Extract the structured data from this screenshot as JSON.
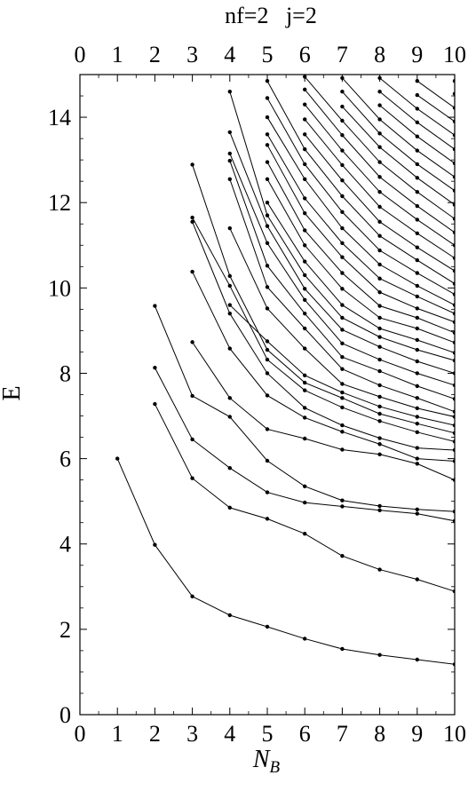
{
  "chart_data": {
    "type": "line",
    "title": "nf=2   j=2",
    "xlabel": "N",
    "xlabel_sub": "B",
    "ylabel": "E",
    "xlim": [
      0,
      10
    ],
    "ylim": [
      0,
      15
    ],
    "x_ticks": [
      0,
      1,
      2,
      3,
      4,
      5,
      6,
      7,
      8,
      9,
      10
    ],
    "y_ticks": [
      0,
      2,
      4,
      6,
      8,
      10,
      12,
      14
    ],
    "grid": false,
    "legend": "none",
    "line_color": "#000000",
    "series": [
      {
        "x": [
          1,
          2,
          3,
          4,
          5,
          6,
          7,
          8,
          9,
          10
        ],
        "y": [
          6.0,
          3.98,
          2.77,
          2.33,
          2.06,
          1.78,
          1.54,
          1.4,
          1.29,
          1.18
        ]
      },
      {
        "x": [
          2,
          3,
          4,
          5,
          6,
          7,
          8,
          9,
          10
        ],
        "y": [
          7.28,
          5.54,
          4.85,
          4.59,
          4.24,
          3.72,
          3.4,
          3.17,
          2.89
        ]
      },
      {
        "x": [
          2,
          3,
          4,
          5,
          6,
          7,
          8,
          9,
          10
        ],
        "y": [
          8.13,
          6.45,
          5.78,
          5.21,
          4.97,
          4.88,
          4.79,
          4.71,
          4.54
        ]
      },
      {
        "x": [
          2,
          3,
          4,
          5,
          6,
          7,
          8,
          9,
          10
        ],
        "y": [
          9.58,
          7.47,
          6.98,
          5.95,
          5.35,
          5.02,
          4.89,
          4.81,
          4.76
        ]
      },
      {
        "x": [
          3,
          4,
          5,
          6,
          7,
          8,
          9,
          10
        ],
        "y": [
          8.73,
          7.42,
          6.69,
          6.47,
          6.21,
          6.1,
          5.88,
          5.5
        ]
      },
      {
        "x": [
          3,
          4,
          5,
          6,
          7,
          8,
          9,
          10
        ],
        "y": [
          10.38,
          8.58,
          7.48,
          6.96,
          6.63,
          6.34,
          6.0,
          5.94
        ]
      },
      {
        "x": [
          3,
          4,
          5,
          6,
          7,
          8,
          9,
          10
        ],
        "y": [
          11.55,
          9.4,
          8.0,
          7.19,
          6.78,
          6.48,
          6.25,
          6.2
        ]
      },
      {
        "x": [
          3,
          4,
          5,
          6,
          7,
          8,
          9,
          10
        ],
        "y": [
          11.65,
          10.05,
          8.32,
          7.6,
          7.2,
          6.88,
          6.62,
          6.4
        ]
      },
      {
        "x": [
          3,
          4,
          5,
          6,
          7,
          8,
          9,
          10
        ],
        "y": [
          12.89,
          10.28,
          8.55,
          7.78,
          7.42,
          7.05,
          6.82,
          6.6
        ]
      },
      {
        "x": [
          4,
          5,
          6,
          7,
          8,
          9,
          10
        ],
        "y": [
          9.6,
          8.75,
          7.95,
          7.55,
          7.22,
          6.98,
          6.78
        ]
      },
      {
        "x": [
          4,
          5,
          6,
          7,
          8,
          9,
          10
        ],
        "y": [
          11.4,
          9.52,
          8.58,
          7.75,
          7.45,
          7.18,
          6.98
        ]
      },
      {
        "x": [
          4,
          5,
          6,
          7,
          8,
          9,
          10
        ],
        "y": [
          12.55,
          10.02,
          9.05,
          8.1,
          7.72,
          7.42,
          7.1
        ]
      },
      {
        "x": [
          4,
          5,
          6,
          7,
          8,
          9,
          10
        ],
        "y": [
          12.98,
          10.52,
          9.4,
          8.38,
          8.05,
          7.7,
          7.4
        ]
      },
      {
        "x": [
          4,
          5,
          6,
          7,
          8,
          9,
          10
        ],
        "y": [
          13.15,
          11.05,
          9.72,
          8.7,
          8.32,
          8.0,
          7.72
        ]
      },
      {
        "x": [
          4,
          5,
          6,
          7,
          8,
          9,
          10
        ],
        "y": [
          13.65,
          11.45,
          9.98,
          9.02,
          8.62,
          8.28,
          8.0
        ]
      },
      {
        "x": [
          4,
          5,
          6,
          7,
          8,
          9,
          10
        ],
        "y": [
          14.6,
          11.7,
          10.3,
          9.3,
          8.85,
          8.55,
          8.3
        ]
      },
      {
        "x": [
          5,
          6,
          7,
          8,
          9,
          10
        ],
        "y": [
          12.0,
          10.62,
          9.6,
          9.05,
          8.78,
          8.48
        ]
      },
      {
        "x": [
          5,
          6,
          7,
          8,
          9,
          10
        ],
        "y": [
          12.55,
          11.0,
          9.98,
          9.3,
          9.05,
          8.72
        ]
      },
      {
        "x": [
          5,
          6,
          7,
          8,
          9,
          10
        ],
        "y": [
          12.95,
          11.35,
          10.35,
          9.58,
          9.3,
          8.95
        ]
      },
      {
        "x": [
          5,
          6,
          7,
          8,
          9,
          10
        ],
        "y": [
          13.35,
          11.75,
          10.72,
          9.9,
          9.52,
          9.2
        ]
      },
      {
        "x": [
          5,
          6,
          7,
          8,
          9,
          10
        ],
        "y": [
          13.6,
          12.1,
          11.05,
          10.22,
          9.8,
          9.4
        ]
      },
      {
        "x": [
          5,
          6,
          7,
          8,
          9,
          10
        ],
        "y": [
          14.0,
          12.55,
          11.4,
          10.55,
          10.05,
          9.6
        ]
      },
      {
        "x": [
          5,
          6,
          7,
          8,
          9,
          10
        ],
        "y": [
          14.45,
          12.9,
          11.78,
          10.88,
          10.35,
          9.85
        ]
      },
      {
        "x": [
          5,
          6,
          7,
          8,
          9,
          10
        ],
        "y": [
          14.85,
          13.25,
          12.15,
          11.22,
          10.65,
          10.1
        ]
      },
      {
        "x": [
          6,
          7,
          8,
          9,
          10
        ],
        "y": [
          13.6,
          12.52,
          11.55,
          10.95,
          10.4
        ]
      },
      {
        "x": [
          6,
          7,
          8,
          9,
          10
        ],
        "y": [
          13.95,
          12.88,
          11.9,
          11.28,
          10.7
        ]
      },
      {
        "x": [
          6,
          7,
          8,
          9,
          10
        ],
        "y": [
          14.3,
          13.22,
          12.25,
          11.6,
          11.0
        ]
      },
      {
        "x": [
          6,
          7,
          8,
          9,
          10
        ],
        "y": [
          14.65,
          13.58,
          12.6,
          11.92,
          11.3
        ]
      },
      {
        "x": [
          6,
          7,
          8,
          9,
          10
        ],
        "y": [
          14.95,
          13.92,
          12.95,
          12.25,
          11.62
        ]
      },
      {
        "x": [
          7,
          8,
          9,
          10
        ],
        "y": [
          14.25,
          13.3,
          12.58,
          11.95
        ]
      },
      {
        "x": [
          7,
          8,
          9,
          10
        ],
        "y": [
          14.6,
          13.62,
          12.9,
          12.28
        ]
      },
      {
        "x": [
          7,
          8,
          9,
          10
        ],
        "y": [
          14.92,
          13.95,
          13.22,
          12.6
        ]
      },
      {
        "x": [
          8,
          9,
          10
        ],
        "y": [
          14.28,
          13.55,
          12.92
        ]
      },
      {
        "x": [
          8,
          9,
          10
        ],
        "y": [
          14.6,
          13.88,
          13.25
        ]
      },
      {
        "x": [
          8,
          9,
          10
        ],
        "y": [
          14.92,
          14.2,
          13.58
        ]
      },
      {
        "x": [
          9,
          10
        ],
        "y": [
          14.52,
          13.9
        ]
      },
      {
        "x": [
          9,
          10
        ],
        "y": [
          14.85,
          14.22
        ]
      },
      {
        "x": [
          10
        ],
        "y": [
          14.55
        ]
      },
      {
        "x": [
          10
        ],
        "y": [
          14.85
        ]
      }
    ]
  }
}
